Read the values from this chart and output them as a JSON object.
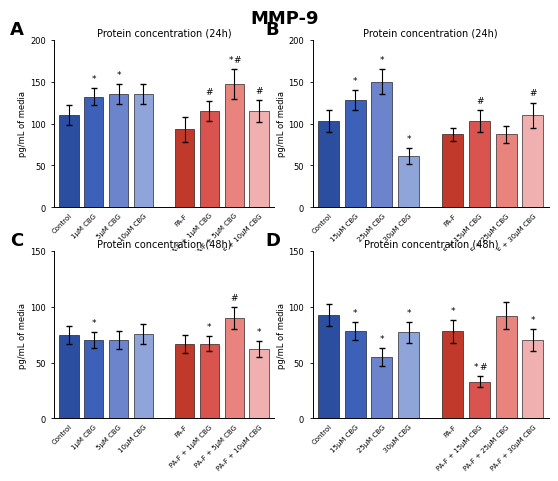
{
  "title": "MMP-9",
  "panels": [
    {
      "label": "A",
      "subtitle": "Protein concentration (24h)",
      "ylabel": "pg/mL of media",
      "ylim": [
        0,
        200
      ],
      "yticks": [
        0,
        50,
        100,
        150,
        200
      ],
      "categories": [
        "Control",
        "1μM CBG",
        "5μM CBG",
        "10μM CBG",
        "PA-F",
        "PA-F + 1μM CBG",
        "PA-F + 5μM CBG",
        "PA-F + 10μM CBG"
      ],
      "values": [
        110,
        132,
        135,
        135,
        93,
        115,
        147,
        115
      ],
      "errors": [
        12,
        10,
        12,
        12,
        15,
        12,
        18,
        13
      ],
      "colors": [
        "#2b4ea0",
        "#3d61b8",
        "#6b84cc",
        "#8fa4d8",
        "#c0392b",
        "#d9534f",
        "#e8837e",
        "#f0b0b0"
      ],
      "sig_above": [
        "",
        "*",
        "*",
        "",
        "",
        "#",
        "*#",
        "#"
      ]
    },
    {
      "label": "B",
      "subtitle": "Protein concentration (24h)",
      "ylabel": "pg/mL of media",
      "ylim": [
        0,
        200
      ],
      "yticks": [
        0,
        50,
        100,
        150,
        200
      ],
      "categories": [
        "Control",
        "15μM CBG",
        "25μM CBG",
        "30μM CBG",
        "PA-F",
        "PA-F + 15μM CBG",
        "PA-F + 25μM CBG",
        "PA-F + 30μM CBG"
      ],
      "values": [
        103,
        128,
        150,
        61,
        87,
        103,
        87,
        110
      ],
      "errors": [
        13,
        12,
        15,
        10,
        8,
        13,
        10,
        15
      ],
      "colors": [
        "#2b4ea0",
        "#3d61b8",
        "#6b84cc",
        "#8fa4d8",
        "#c0392b",
        "#d9534f",
        "#e8837e",
        "#f0b0b0"
      ],
      "sig_above": [
        "",
        "*",
        "*",
        "*",
        "",
        "#",
        "",
        "#"
      ]
    },
    {
      "label": "C",
      "subtitle": "Protein concentration (48h)",
      "ylabel": "pg/mL of media",
      "ylim": [
        0,
        150
      ],
      "yticks": [
        0,
        50,
        100,
        150
      ],
      "categories": [
        "Control",
        "1μM CBG",
        "5μM CBG",
        "10μM CBG",
        "PA-F",
        "PA-F + 1μM CBG",
        "PA-F + 5μM CBG",
        "PA-F + 10μM CBG"
      ],
      "values": [
        75,
        70,
        70,
        76,
        67,
        67,
        90,
        62
      ],
      "errors": [
        8,
        7,
        8,
        9,
        8,
        7,
        10,
        7
      ],
      "colors": [
        "#2b4ea0",
        "#3d61b8",
        "#6b84cc",
        "#8fa4d8",
        "#c0392b",
        "#d9534f",
        "#e8837e",
        "#f0b0b0"
      ],
      "sig_above": [
        "",
        "*",
        "",
        "",
        "",
        "*",
        "#",
        "*"
      ]
    },
    {
      "label": "D",
      "subtitle": "Protein concentration (48h)",
      "ylabel": "pg/mL of media",
      "ylim": [
        0,
        150
      ],
      "yticks": [
        0,
        50,
        100,
        150
      ],
      "categories": [
        "Control",
        "15μM CBG",
        "25μM CBG",
        "30μM CBG",
        "PA-F",
        "PA-F + 15μM CBG",
        "PA-F + 25μM CBG",
        "PA-F + 30μM CBG"
      ],
      "values": [
        93,
        78,
        55,
        77,
        78,
        33,
        92,
        70
      ],
      "errors": [
        10,
        8,
        8,
        9,
        10,
        5,
        12,
        10
      ],
      "colors": [
        "#2b4ea0",
        "#3d61b8",
        "#6b84cc",
        "#8fa4d8",
        "#c0392b",
        "#d9534f",
        "#e8837e",
        "#f0b0b0"
      ],
      "sig_above": [
        "",
        "*",
        "*",
        "*",
        "*",
        "*#",
        "",
        "*"
      ]
    }
  ]
}
